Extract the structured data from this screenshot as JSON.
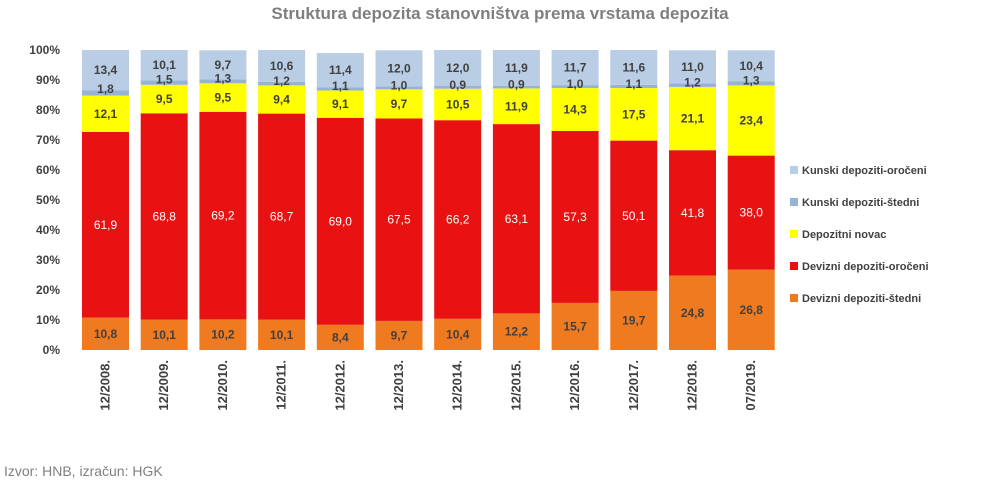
{
  "chart_data": {
    "type": "bar",
    "stacked": true,
    "title": "Struktura depozita stanovništva prema vrstama depozita",
    "xlabel": "",
    "ylabel": "",
    "ylim": [
      0,
      100
    ],
    "ytick_labels": [
      "0%",
      "10%",
      "20%",
      "30%",
      "40%",
      "50%",
      "60%",
      "70%",
      "80%",
      "90%",
      "100%"
    ],
    "categories": [
      "12/2008.",
      "12/2009.",
      "12/2010.",
      "12/2011.",
      "12/2012.",
      "12/2013.",
      "12/2014.",
      "12/2015.",
      "12/2016.",
      "12/2017.",
      "12/2018.",
      "07/2019."
    ],
    "legend_position": "right",
    "series": [
      {
        "name": "Devizni depoziti-štedni",
        "color": "#f07a20",
        "values": [
          10.8,
          10.1,
          10.2,
          10.1,
          8.4,
          9.7,
          10.4,
          12.2,
          15.7,
          19.7,
          24.8,
          26.8
        ]
      },
      {
        "name": "Devizni depoziti-oročeni",
        "color": "#e81212",
        "values": [
          61.9,
          68.8,
          69.2,
          68.7,
          69.0,
          67.5,
          66.2,
          63.1,
          57.3,
          50.1,
          41.8,
          38.0
        ]
      },
      {
        "name": "Depozitni novac",
        "color": "#ffff00",
        "values": [
          12.1,
          9.5,
          9.5,
          9.4,
          9.1,
          9.7,
          10.5,
          11.9,
          14.3,
          17.5,
          21.1,
          23.4
        ]
      },
      {
        "name": "Kunski depoziti-štedni",
        "color": "#95b3d7",
        "values": [
          1.8,
          1.5,
          1.3,
          1.2,
          1.1,
          1.0,
          0.9,
          0.9,
          1.0,
          1.1,
          1.2,
          1.3
        ]
      },
      {
        "name": "Kunski depoziti-oročeni",
        "color": "#b9cde5",
        "values": [
          13.4,
          10.1,
          9.7,
          10.6,
          11.4,
          12.0,
          12.0,
          11.9,
          11.7,
          11.6,
          11.0,
          10.4
        ]
      }
    ],
    "value_labels": [
      [
        "10,8",
        "10,1",
        "10,2",
        "10,1",
        "8,4",
        "9,7",
        "10,4",
        "12,2",
        "15,7",
        "19,7",
        "24,8",
        "26,8"
      ],
      [
        "61,9",
        "68,8",
        "69,2",
        "68,7",
        "69,0",
        "67,5",
        "66,2",
        "63,1",
        "57,3",
        "50,1",
        "41,8",
        "38,0"
      ],
      [
        "12,1",
        "9,5",
        "9,5",
        "9,4",
        "9,1",
        "9,7",
        "10,5",
        "11,9",
        "14,3",
        "17,5",
        "21,1",
        "23,4"
      ],
      [
        "1,8",
        "1,5",
        "1,3",
        "1,2",
        "1,1",
        "1,0",
        "0,9",
        "0,9",
        "1,0",
        "1,1",
        "1,2",
        "1,3"
      ],
      [
        "13,4",
        "10,1",
        "9,7",
        "10,6",
        "11,4",
        "12,0",
        "12,0",
        "11,9",
        "11,7",
        "11,6",
        "11,0",
        "10,4"
      ]
    ],
    "legend_order": [
      4,
      3,
      2,
      1,
      0
    ]
  },
  "source": "Izvor: HNB, izračun: HGK"
}
